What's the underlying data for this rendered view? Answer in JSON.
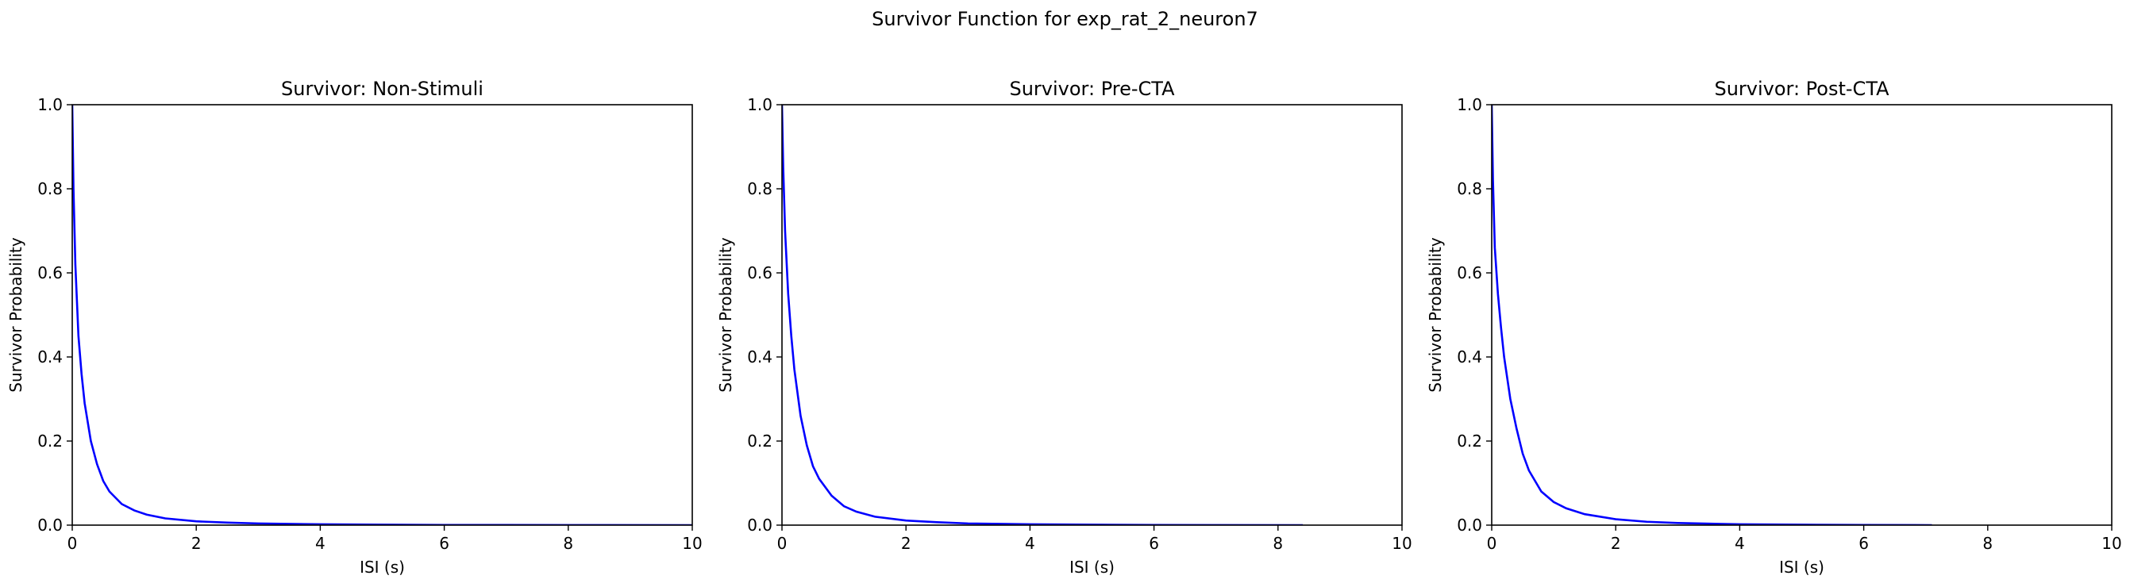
{
  "figure": {
    "title": "Survivor Function for exp_rat_2_neuron7"
  },
  "style": {
    "line_color": "#0000ff",
    "axis_color": "#000000",
    "background": "#ffffff"
  },
  "chart_data": [
    {
      "type": "line",
      "title": "Survivor: Non-Stimuli",
      "xlabel": "ISI (s)",
      "ylabel": "Survivor Probability",
      "xlim": [
        0,
        10
      ],
      "ylim": [
        0,
        1
      ],
      "xticks": [
        0,
        2,
        4,
        6,
        8,
        10
      ],
      "yticks": [
        0.0,
        0.2,
        0.4,
        0.6,
        0.8,
        1.0
      ],
      "grid": false,
      "series": [
        {
          "color": "#0000ff",
          "x": [
            0,
            0.02,
            0.05,
            0.1,
            0.15,
            0.2,
            0.3,
            0.4,
            0.5,
            0.6,
            0.8,
            1.0,
            1.2,
            1.5,
            2.0,
            2.5,
            3.0,
            4.0,
            5.0,
            6.0,
            8.0,
            10.0
          ],
          "y": [
            1.0,
            0.8,
            0.62,
            0.45,
            0.36,
            0.29,
            0.2,
            0.145,
            0.105,
            0.08,
            0.05,
            0.035,
            0.025,
            0.016,
            0.009,
            0.006,
            0.004,
            0.002,
            0.001,
            0.0005,
            0.0002,
            0.0
          ]
        }
      ]
    },
    {
      "type": "line",
      "title": "Survivor: Pre-CTA",
      "xlabel": "ISI (s)",
      "ylabel": "Survivor Probability",
      "xlim": [
        0,
        10
      ],
      "ylim": [
        0,
        1
      ],
      "xticks": [
        0,
        2,
        4,
        6,
        8,
        10
      ],
      "yticks": [
        0.0,
        0.2,
        0.4,
        0.6,
        0.8,
        1.0
      ],
      "grid": false,
      "series": [
        {
          "color": "#0000ff",
          "x": [
            0,
            0.02,
            0.05,
            0.1,
            0.15,
            0.2,
            0.3,
            0.4,
            0.5,
            0.6,
            0.8,
            1.0,
            1.2,
            1.5,
            2.0,
            2.5,
            3.0,
            4.0,
            5.0,
            6.0,
            7.0,
            8.4
          ],
          "y": [
            1.0,
            0.85,
            0.7,
            0.55,
            0.45,
            0.37,
            0.26,
            0.19,
            0.14,
            0.11,
            0.07,
            0.045,
            0.032,
            0.02,
            0.011,
            0.007,
            0.004,
            0.002,
            0.001,
            0.0005,
            0.0002,
            0.0
          ]
        }
      ]
    },
    {
      "type": "line",
      "title": "Survivor: Post-CTA",
      "xlabel": "ISI (s)",
      "ylabel": "Survivor Probability",
      "xlim": [
        0,
        10
      ],
      "ylim": [
        0,
        1
      ],
      "xticks": [
        0,
        2,
        4,
        6,
        8,
        10
      ],
      "yticks": [
        0.0,
        0.2,
        0.4,
        0.6,
        0.8,
        1.0
      ],
      "grid": false,
      "series": [
        {
          "color": "#0000ff",
          "x": [
            0,
            0.02,
            0.05,
            0.1,
            0.15,
            0.2,
            0.3,
            0.4,
            0.5,
            0.6,
            0.8,
            1.0,
            1.2,
            1.5,
            2.0,
            2.5,
            3.0,
            4.0,
            5.0,
            6.0,
            7.1
          ],
          "y": [
            1.0,
            0.82,
            0.66,
            0.55,
            0.47,
            0.4,
            0.3,
            0.23,
            0.17,
            0.13,
            0.08,
            0.055,
            0.04,
            0.026,
            0.014,
            0.008,
            0.005,
            0.002,
            0.001,
            0.0005,
            0.0
          ]
        }
      ]
    }
  ]
}
